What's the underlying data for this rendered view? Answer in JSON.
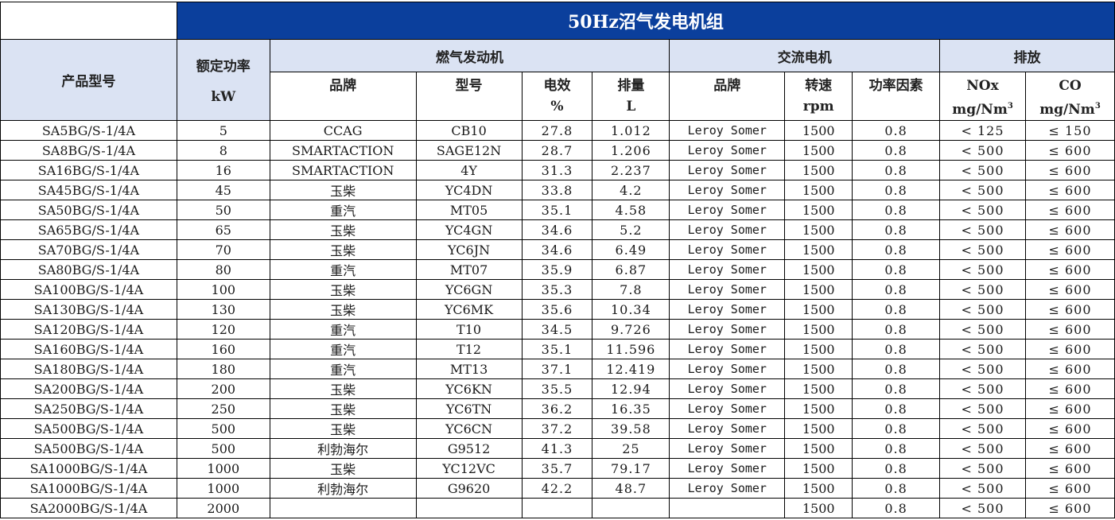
{
  "title": "50Hz沼气发电机组",
  "headers": {
    "model": "产品型号",
    "rated_power": "额定功率",
    "rated_power_unit": "kW",
    "engine_group": "燃气发动机",
    "engine_brand": "品牌",
    "engine_model": "型号",
    "efficiency": "电效",
    "efficiency_unit": "%",
    "displacement": "排量",
    "displacement_unit": "L",
    "alternator_group": "交流电机",
    "alt_brand": "品牌",
    "speed": "转速",
    "speed_unit": "rpm",
    "power_factor": "功率因素",
    "emission_group": "排放",
    "nox": "NOx",
    "nox_unit": "mg/Nm",
    "co": "CO",
    "co_unit": "mg/Nm",
    "cube": "3"
  },
  "rows": [
    [
      "SA5BG/S-1/4A",
      "5",
      "CCAG",
      "CB10",
      "27.8",
      "1.012",
      "Leroy Somer",
      "1500",
      "0.8",
      "< 125",
      "≤ 150"
    ],
    [
      "SA8BG/S-1/4A",
      "8",
      "SMARTACTION",
      "SAGE12N",
      "28.7",
      "1.206",
      "Leroy Somer",
      "1500",
      "0.8",
      "< 500",
      "≤ 600"
    ],
    [
      "SA16BG/S-1/4A",
      "16",
      "SMARTACTION",
      "4Y",
      "31.3",
      "2.237",
      "Leroy Somer",
      "1500",
      "0.8",
      "< 500",
      "≤ 600"
    ],
    [
      "SA45BG/S-1/4A",
      "45",
      "玉柴",
      "YC4DN",
      "33.8",
      "4.2",
      "Leroy Somer",
      "1500",
      "0.8",
      "< 500",
      "≤ 600"
    ],
    [
      "SA50BG/S-1/4A",
      "50",
      "重汽",
      "MT05",
      "35.1",
      "4.58",
      "Leroy Somer",
      "1500",
      "0.8",
      "< 500",
      "≤ 600"
    ],
    [
      "SA65BG/S-1/4A",
      "65",
      "玉柴",
      "YC4GN",
      "34.6",
      "5.2",
      "Leroy Somer",
      "1500",
      "0.8",
      "< 500",
      "≤ 600"
    ],
    [
      "SA70BG/S-1/4A",
      "70",
      "玉柴",
      "YC6JN",
      "34.6",
      "6.49",
      "Leroy Somer",
      "1500",
      "0.8",
      "< 500",
      "≤ 600"
    ],
    [
      "SA80BG/S-1/4A",
      "80",
      "重汽",
      "MT07",
      "35.9",
      "6.87",
      "Leroy Somer",
      "1500",
      "0.8",
      "< 500",
      "≤ 600"
    ],
    [
      "SA100BG/S-1/4A",
      "100",
      "玉柴",
      "YC6GN",
      "35.3",
      "7.8",
      "Leroy Somer",
      "1500",
      "0.8",
      "< 500",
      "≤ 600"
    ],
    [
      "SA130BG/S-1/4A",
      "130",
      "玉柴",
      "YC6MK",
      "35.6",
      "10.34",
      "Leroy Somer",
      "1500",
      "0.8",
      "< 500",
      "≤ 600"
    ],
    [
      "SA120BG/S-1/4A",
      "120",
      "重汽",
      "T10",
      "34.5",
      "9.726",
      "Leroy Somer",
      "1500",
      "0.8",
      "< 500",
      "≤ 600"
    ],
    [
      "SA160BG/S-1/4A",
      "160",
      "重汽",
      "T12",
      "35.1",
      "11.596",
      "Leroy Somer",
      "1500",
      "0.8",
      "< 500",
      "≤ 600"
    ],
    [
      "SA180BG/S-1/4A",
      "180",
      "重汽",
      "MT13",
      "37.1",
      "12.419",
      "Leroy Somer",
      "1500",
      "0.8",
      "< 500",
      "≤ 600"
    ],
    [
      "SA200BG/S-1/4A",
      "200",
      "玉柴",
      "YC6KN",
      "35.5",
      "12.94",
      "Leroy Somer",
      "1500",
      "0.8",
      "< 500",
      "≤ 600"
    ],
    [
      "SA250BG/S-1/4A",
      "250",
      "玉柴",
      "YC6TN",
      "36.2",
      "16.35",
      "Leroy Somer",
      "1500",
      "0.8",
      "< 500",
      "≤ 600"
    ],
    [
      "SA500BG/S-1/4A",
      "500",
      "玉柴",
      "YC6CN",
      "37.2",
      "39.58",
      "Leroy Somer",
      "1500",
      "0.8",
      "< 500",
      "≤ 600"
    ],
    [
      "SA500BG/S-1/4A",
      "500",
      "利勃海尔",
      "G9512",
      "41.3",
      "25",
      "Leroy Somer",
      "1500",
      "0.8",
      "< 500",
      "≤ 600"
    ],
    [
      "SA1000BG/S-1/4A",
      "1000",
      "玉柴",
      "YC12VC",
      "35.7",
      "79.17",
      "Leroy Somer",
      "1500",
      "0.8",
      "< 500",
      "≤ 600"
    ],
    [
      "SA1000BG/S-1/4A",
      "1000",
      "利勃海尔",
      "G9620",
      "42.2",
      "48.7",
      "Leroy Somer",
      "1500",
      "0.8",
      "< 500",
      "≤ 600"
    ],
    [
      "SA2000BG/S-1/4A",
      "2000",
      "",
      "",
      "",
      "",
      "",
      "1500",
      "0.8",
      "< 500",
      "≤ 600"
    ]
  ]
}
